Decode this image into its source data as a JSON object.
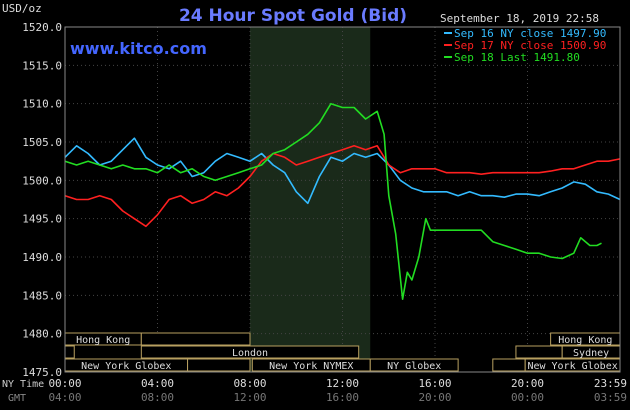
{
  "chart_data": {
    "type": "line",
    "title": "24 Hour Spot Gold (Bid)",
    "ylabel": "USD/oz",
    "watermark": "www.kitco.com",
    "timestamp": "September 18, 2019 22:58",
    "ylim": [
      1475.0,
      1520.0
    ],
    "yticks": [
      "1520.0",
      "1515.0",
      "1510.0",
      "1505.0",
      "1500.0",
      "1495.0",
      "1490.0",
      "1485.0",
      "1480.0",
      "1475.0"
    ],
    "x_range_hours": [
      0,
      24
    ],
    "x_ticks_ny": [
      "00:00",
      "04:00",
      "08:00",
      "12:00",
      "16:00",
      "20:00",
      "23:59"
    ],
    "x_ticks_gmt": [
      "04:00",
      "08:00",
      "12:00",
      "16:00",
      "20:00",
      "00:00",
      "03:59"
    ],
    "x_label_ny": "NY Time",
    "x_label_gmt": "GMT",
    "shaded_session_hours": [
      8,
      13.2
    ],
    "legend_position": "top-right",
    "series": [
      {
        "name": "Sep 16 NY close 1497.90",
        "color": "#33bbff",
        "points": [
          [
            0,
            1503
          ],
          [
            0.5,
            1504.5
          ],
          [
            1,
            1503.5
          ],
          [
            1.5,
            1502
          ],
          [
            2,
            1502.5
          ],
          [
            2.5,
            1504
          ],
          [
            3,
            1505.5
          ],
          [
            3.5,
            1503
          ],
          [
            4,
            1502
          ],
          [
            4.5,
            1501.5
          ],
          [
            5,
            1502.5
          ],
          [
            5.5,
            1500.5
          ],
          [
            6,
            1501
          ],
          [
            6.5,
            1502.5
          ],
          [
            7,
            1503.5
          ],
          [
            7.5,
            1503
          ],
          [
            8,
            1502.5
          ],
          [
            8.5,
            1503.5
          ],
          [
            9,
            1502
          ],
          [
            9.5,
            1501
          ],
          [
            10,
            1498.5
          ],
          [
            10.5,
            1497
          ],
          [
            11,
            1500.5
          ],
          [
            11.5,
            1503
          ],
          [
            12,
            1502.5
          ],
          [
            12.5,
            1503.5
          ],
          [
            13,
            1503
          ],
          [
            13.5,
            1503.5
          ],
          [
            14,
            1502
          ],
          [
            14.5,
            1500
          ],
          [
            15,
            1499
          ],
          [
            15.5,
            1498.5
          ],
          [
            16,
            1498.5
          ],
          [
            16.5,
            1498.5
          ],
          [
            17,
            1498
          ],
          [
            17.5,
            1498.5
          ],
          [
            18,
            1498
          ],
          [
            18.5,
            1498
          ],
          [
            19,
            1497.8
          ],
          [
            19.5,
            1498.2
          ],
          [
            20,
            1498.2
          ],
          [
            20.5,
            1498
          ],
          [
            21,
            1498.5
          ],
          [
            21.5,
            1499
          ],
          [
            22,
            1499.8
          ],
          [
            22.5,
            1499.5
          ],
          [
            23,
            1498.5
          ],
          [
            23.5,
            1498.2
          ],
          [
            24,
            1497.5
          ]
        ]
      },
      {
        "name": "Sep 17 NY close 1500.90",
        "color": "#ff2020",
        "points": [
          [
            0,
            1498
          ],
          [
            0.5,
            1497.5
          ],
          [
            1,
            1497.5
          ],
          [
            1.5,
            1498
          ],
          [
            2,
            1497.5
          ],
          [
            2.5,
            1496
          ],
          [
            3,
            1495
          ],
          [
            3.5,
            1494
          ],
          [
            4,
            1495.5
          ],
          [
            4.5,
            1497.5
          ],
          [
            5,
            1498
          ],
          [
            5.5,
            1497
          ],
          [
            6,
            1497.5
          ],
          [
            6.5,
            1498.5
          ],
          [
            7,
            1498
          ],
          [
            7.5,
            1499
          ],
          [
            8,
            1500.5
          ],
          [
            8.5,
            1502.5
          ],
          [
            9,
            1503.5
          ],
          [
            9.5,
            1503
          ],
          [
            10,
            1502
          ],
          [
            10.5,
            1502.5
          ],
          [
            11,
            1503
          ],
          [
            11.5,
            1503.5
          ],
          [
            12,
            1504
          ],
          [
            12.5,
            1504.5
          ],
          [
            13,
            1504
          ],
          [
            13.5,
            1504.5
          ],
          [
            14,
            1502
          ],
          [
            14.5,
            1501
          ],
          [
            15,
            1501.5
          ],
          [
            15.5,
            1501.5
          ],
          [
            16,
            1501.5
          ],
          [
            16.5,
            1501
          ],
          [
            17,
            1501
          ],
          [
            17.5,
            1501
          ],
          [
            18,
            1500.8
          ],
          [
            18.5,
            1501
          ],
          [
            19,
            1501
          ],
          [
            19.5,
            1501
          ],
          [
            20,
            1501
          ],
          [
            20.5,
            1501
          ],
          [
            21,
            1501.2
          ],
          [
            21.5,
            1501.5
          ],
          [
            22,
            1501.5
          ],
          [
            22.5,
            1502
          ],
          [
            23,
            1502.5
          ],
          [
            23.5,
            1502.5
          ],
          [
            24,
            1502.8
          ]
        ]
      },
      {
        "name": "Sep 18 Last 1491.80",
        "color": "#22dd22",
        "points": [
          [
            0,
            1502.5
          ],
          [
            0.5,
            1502
          ],
          [
            1,
            1502.5
          ],
          [
            1.5,
            1502
          ],
          [
            2,
            1501.5
          ],
          [
            2.5,
            1502
          ],
          [
            3,
            1501.5
          ],
          [
            3.5,
            1501.5
          ],
          [
            4,
            1501
          ],
          [
            4.5,
            1502
          ],
          [
            5,
            1501
          ],
          [
            5.5,
            1501.5
          ],
          [
            6,
            1500.5
          ],
          [
            6.5,
            1500
          ],
          [
            7,
            1500.5
          ],
          [
            7.5,
            1501
          ],
          [
            8,
            1501.5
          ],
          [
            8.5,
            1502
          ],
          [
            9,
            1503.5
          ],
          [
            9.5,
            1504
          ],
          [
            10,
            1505
          ],
          [
            10.5,
            1506
          ],
          [
            11,
            1507.5
          ],
          [
            11.5,
            1510
          ],
          [
            12,
            1509.5
          ],
          [
            12.5,
            1509.5
          ],
          [
            13,
            1508
          ],
          [
            13.5,
            1509
          ],
          [
            13.8,
            1506
          ],
          [
            14,
            1498
          ],
          [
            14.3,
            1493
          ],
          [
            14.6,
            1484.5
          ],
          [
            14.8,
            1488
          ],
          [
            15,
            1487
          ],
          [
            15.3,
            1490
          ],
          [
            15.6,
            1495
          ],
          [
            15.8,
            1493.5
          ],
          [
            16,
            1493.5
          ],
          [
            16.5,
            1493.5
          ],
          [
            17,
            1493.5
          ],
          [
            17.5,
            1493.5
          ],
          [
            18,
            1493.5
          ],
          [
            18.5,
            1492
          ],
          [
            19,
            1491.5
          ],
          [
            19.5,
            1491
          ],
          [
            20,
            1490.5
          ],
          [
            20.5,
            1490.5
          ],
          [
            21,
            1490
          ],
          [
            21.5,
            1489.8
          ],
          [
            22,
            1490.5
          ],
          [
            22.3,
            1492.5
          ],
          [
            22.7,
            1491.5
          ],
          [
            23,
            1491.5
          ],
          [
            23.2,
            1491.8
          ]
        ]
      }
    ],
    "sessions": [
      {
        "label": "Hong Kong",
        "start": 0,
        "end": 3.3,
        "row": 0
      },
      {
        "label": "Hong Kong",
        "start": 21,
        "end": 24,
        "row": 0
      },
      {
        "label": "",
        "start": 3.3,
        "end": 8,
        "row": 0
      },
      {
        "label": "",
        "start": 0,
        "end": 0.4,
        "row": 1
      },
      {
        "label": "London",
        "start": 3.3,
        "end": 12.7,
        "row": 1
      },
      {
        "label": "",
        "start": 19.5,
        "end": 21.5,
        "row": 1
      },
      {
        "label": "Sydney",
        "start": 21.5,
        "end": 24,
        "row": 1
      },
      {
        "label": "New York Globex",
        "start": 0,
        "end": 5.3,
        "row": 2
      },
      {
        "label": "",
        "start": 5.3,
        "end": 8,
        "row": 2
      },
      {
        "label": "New York NYMEX",
        "start": 8.1,
        "end": 13.2,
        "row": 2
      },
      {
        "label": "NY Globex",
        "start": 13.2,
        "end": 17,
        "row": 2
      },
      {
        "label": "",
        "start": 18.5,
        "end": 19.9,
        "row": 2
      },
      {
        "label": "New York Globex",
        "start": 19.9,
        "end": 24,
        "row": 2
      }
    ]
  }
}
